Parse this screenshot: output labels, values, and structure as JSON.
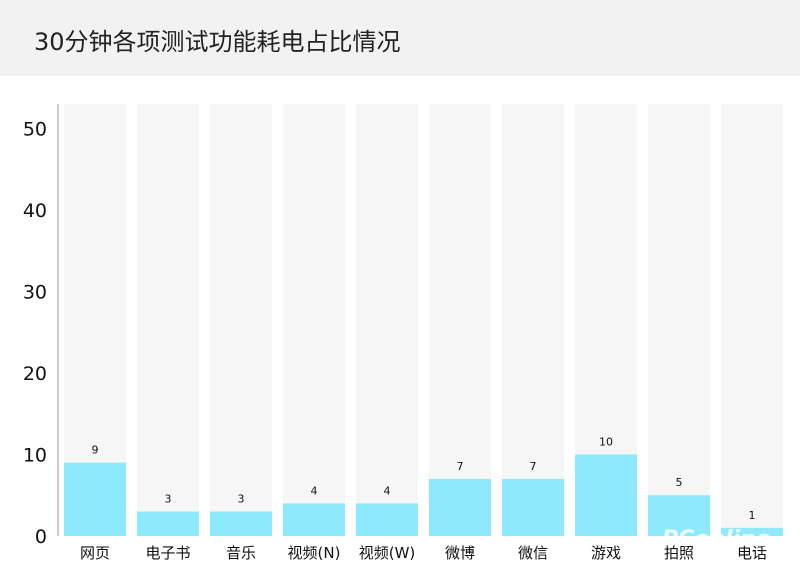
{
  "header": {
    "title": "30分钟各项测试功能耗电占比情况"
  },
  "colors": {
    "bar": "#8de9fb",
    "track": "#f6f6f6",
    "axis": "#9a9a9a",
    "header_bg": "#f2f2f2"
  },
  "chart_data": {
    "type": "bar",
    "title": "30分钟各项测试功能耗电占比情况",
    "xlabel": "",
    "ylabel": "",
    "ylim": [
      0,
      53
    ],
    "yticks": [
      0,
      10,
      20,
      30,
      40,
      50
    ],
    "grid": false,
    "background_tracks": true,
    "categories": [
      "网页",
      "电子书",
      "音乐",
      "视频(N)",
      "视频(W)",
      "微博",
      "微信",
      "游戏",
      "拍照",
      "电话"
    ],
    "values": [
      9,
      3,
      3,
      4,
      4,
      7,
      7,
      10,
      5,
      1
    ],
    "data_labels": [
      "9",
      "3",
      "3",
      "4",
      "4",
      "7",
      "7",
      "10",
      "5",
      "1"
    ]
  },
  "watermark": {
    "text": "PConline"
  }
}
